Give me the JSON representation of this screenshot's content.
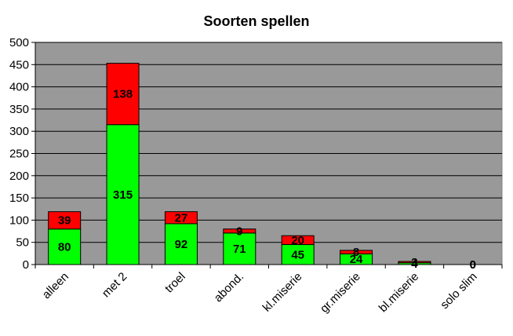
{
  "chart_data": {
    "type": "bar",
    "stacked": true,
    "title": "Soorten spellen",
    "xlabel": "",
    "ylabel": "",
    "categories": [
      "alleen",
      "met 2",
      "troel",
      "abond.",
      "kl.miserie",
      "gr.miserie",
      "bl.miserie",
      "solo slim"
    ],
    "series": [
      {
        "values": [
          80,
          315,
          92,
          71,
          45,
          24,
          4,
          0
        ],
        "color": "#00ff00"
      },
      {
        "values": [
          39,
          138,
          27,
          9,
          20,
          8,
          3,
          0
        ],
        "color": "#ff0000"
      }
    ],
    "ylim": [
      0,
      500
    ],
    "yticks": [
      0,
      50,
      100,
      150,
      200,
      250,
      300,
      350,
      400,
      450,
      500
    ],
    "grid": true,
    "legend": "none",
    "plot_background": "#999999"
  }
}
